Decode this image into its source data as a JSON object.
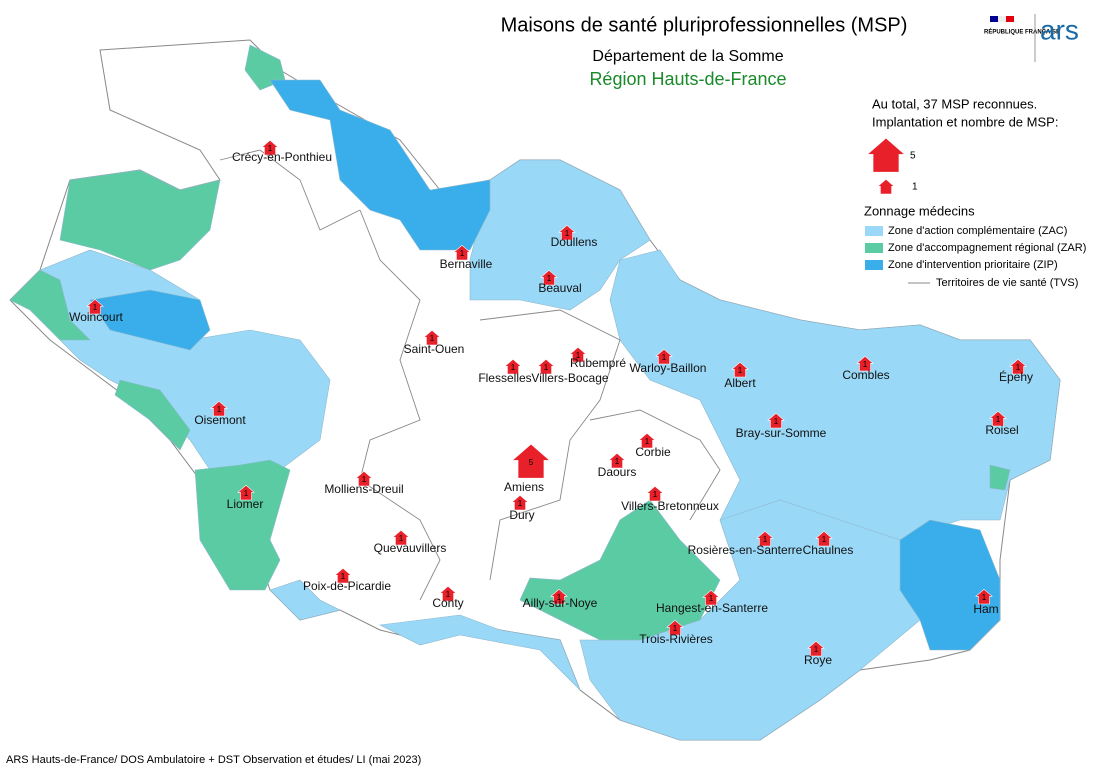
{
  "header": {
    "title": "Maisons de santé pluriprofessionnelles (MSP)",
    "subtitle": "Département de la Somme",
    "region": "Région Hauts-de-France"
  },
  "logos": {
    "republique": "RÉPUBLIQUE FRANÇAISE",
    "ars": "ars"
  },
  "legend": {
    "total": "Au total, 37 MSP reconnues.",
    "implantation": "Implantation et nombre de MSP:",
    "sizes": [
      5,
      1
    ],
    "zonage_title": "Zonnage médecins",
    "zones": [
      "Zone d'action complémentaire (ZAC)",
      "Zone d'accompagnement régional (ZAR)",
      "Zone d'intervention prioritaire (ZIP)"
    ],
    "tvs": "Territoires de vie santé (TVS)"
  },
  "places": [
    {
      "name": "Crécy-en-Ponthieu",
      "count": 1
    },
    {
      "name": "Bernaville",
      "count": 1
    },
    {
      "name": "Doullens",
      "count": 1
    },
    {
      "name": "Beauval",
      "count": 1
    },
    {
      "name": "Woincourt",
      "count": 1
    },
    {
      "name": "Saint-Ouen",
      "count": 1
    },
    {
      "name": "Flesselles",
      "count": 1
    },
    {
      "name": "Villers-Bocage",
      "count": 1
    },
    {
      "name": "Rubempré",
      "count": 1
    },
    {
      "name": "Warloy-Baillon",
      "count": 1
    },
    {
      "name": "Albert",
      "count": 1
    },
    {
      "name": "Combles",
      "count": 1
    },
    {
      "name": "Épehy",
      "count": 1
    },
    {
      "name": "Oisemont",
      "count": 1
    },
    {
      "name": "Bray-sur-Somme",
      "count": 1
    },
    {
      "name": "Roisel",
      "count": 1
    },
    {
      "name": "Corbie",
      "count": 1
    },
    {
      "name": "Daours",
      "count": 1
    },
    {
      "name": "Amiens",
      "count": 5
    },
    {
      "name": "Molliens-Dreuil",
      "count": 1
    },
    {
      "name": "Liomer",
      "count": 1
    },
    {
      "name": "Villers-Bretonneux",
      "count": 1
    },
    {
      "name": "Dury",
      "count": 1
    },
    {
      "name": "Quevauvillers",
      "count": 1
    },
    {
      "name": "Rosières-en-Santerre",
      "count": 1
    },
    {
      "name": "Chaulnes",
      "count": 1
    },
    {
      "name": "Poix-de-Picardie",
      "count": 1
    },
    {
      "name": "Conty",
      "count": 1
    },
    {
      "name": "Ailly-sur-Noye",
      "count": 1
    },
    {
      "name": "Hangest-en-Santerre",
      "count": 1
    },
    {
      "name": "Ham",
      "count": 1
    },
    {
      "name": "Trois-Rivières",
      "count": 1
    },
    {
      "name": "Roye",
      "count": 1
    }
  ],
  "footer": "ARS Hauts-de-France/ DOS Ambulatoire + DST Observation et études/ LI (mai 2023)"
}
